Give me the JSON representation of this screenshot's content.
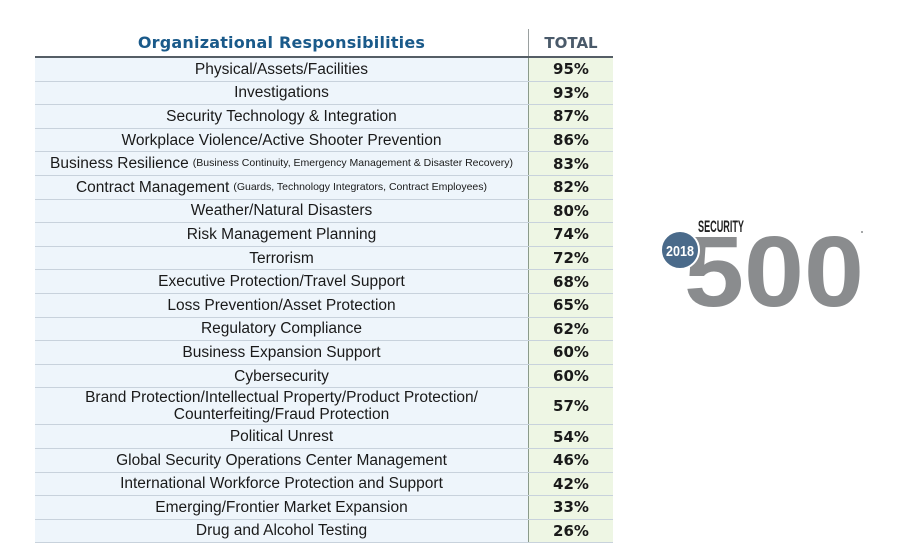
{
  "chart_data": {
    "type": "table",
    "title": "",
    "columns": [
      "Organizational Responsibilities",
      "TOTAL"
    ],
    "rows": [
      {
        "label": "Physical/Assets/Facilities",
        "note": "",
        "value": 95,
        "display": "95%"
      },
      {
        "label": "Investigations",
        "note": "",
        "value": 93,
        "display": "93%"
      },
      {
        "label": "Security Technology & Integration",
        "note": "",
        "value": 87,
        "display": "87%"
      },
      {
        "label": "Workplace Violence/Active Shooter Prevention",
        "note": "",
        "value": 86,
        "display": "86%"
      },
      {
        "label": "Business Resilience",
        "note": "(Business Continuity, Emergency Management & Disaster Recovery)",
        "value": 83,
        "display": "83%"
      },
      {
        "label": "Contract Management",
        "note": "(Guards, Technology Integrators, Contract Employees)",
        "value": 82,
        "display": "82%"
      },
      {
        "label": "Weather/Natural Disasters",
        "note": "",
        "value": 80,
        "display": "80%"
      },
      {
        "label": "Risk Management Planning",
        "note": "",
        "value": 74,
        "display": "74%"
      },
      {
        "label": "Terrorism",
        "note": "",
        "value": 72,
        "display": "72%"
      },
      {
        "label": "Executive Protection/Travel Support",
        "note": "",
        "value": 68,
        "display": "68%"
      },
      {
        "label": "Loss Prevention/Asset Protection",
        "note": "",
        "value": 65,
        "display": "65%"
      },
      {
        "label": "Regulatory Compliance",
        "note": "",
        "value": 62,
        "display": "62%"
      },
      {
        "label": "Business Expansion Support",
        "note": "",
        "value": 60,
        "display": "60%"
      },
      {
        "label": "Cybersecurity",
        "note": "",
        "value": 60,
        "display": "60%"
      },
      {
        "label": "Brand Protection/Intellectual Property/Product Protection/ Counterfeiting/Fraud Protection",
        "note": "",
        "value": 57,
        "display": "57%"
      },
      {
        "label": "Political Unrest",
        "note": "",
        "value": 54,
        "display": "54%"
      },
      {
        "label": "Global Security Operations Center Management",
        "note": "",
        "value": 46,
        "display": "46%"
      },
      {
        "label": "International Workforce Protection and Support",
        "note": "",
        "value": 42,
        "display": "42%"
      },
      {
        "label": "Emerging/Frontier Market Expansion",
        "note": "",
        "value": 33,
        "display": "33%"
      },
      {
        "label": "Drug and Alcohol Testing",
        "note": "",
        "value": 26,
        "display": "26%"
      }
    ]
  },
  "logo": {
    "brand": "SECURITY",
    "year": "2018",
    "number": "500",
    "colors": {
      "number": "#8a8c8e",
      "badge": "#4a6a8a",
      "brand": "#222222"
    }
  },
  "colors": {
    "header_title": "#1a5a8a",
    "label_bg": "#eef5fb",
    "value_bg": "#eef6e4"
  }
}
